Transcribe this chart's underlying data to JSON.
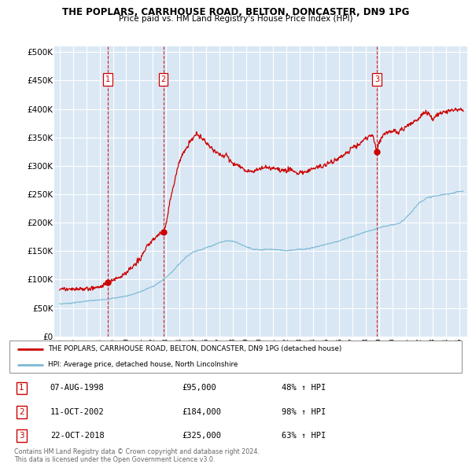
{
  "title": "THE POPLARS, CARRHOUSE ROAD, BELTON, DONCASTER, DN9 1PG",
  "subtitle": "Price paid vs. HM Land Registry's House Price Index (HPI)",
  "yticks": [
    0,
    50000,
    100000,
    150000,
    200000,
    250000,
    300000,
    350000,
    400000,
    450000,
    500000
  ],
  "xlim_start": 1994.6,
  "xlim_end": 2025.6,
  "ylim": [
    0,
    510000
  ],
  "bg_color": "#dce9f5",
  "grid_color": "#ffffff",
  "sale_color": "#cc0000",
  "hpi_color": "#7ab8d4",
  "sales": [
    {
      "year": 1998.6,
      "price": 95000,
      "label": "1"
    },
    {
      "year": 2002.78,
      "price": 184000,
      "label": "2"
    },
    {
      "year": 2018.81,
      "price": 325000,
      "label": "3"
    }
  ],
  "sale_annotations": [
    {
      "label": "1",
      "date": "07-AUG-1998",
      "price": "£95,000",
      "hpi": "48% ↑ HPI"
    },
    {
      "label": "2",
      "date": "11-OCT-2002",
      "price": "£184,000",
      "hpi": "98% ↑ HPI"
    },
    {
      "label": "3",
      "date": "22-OCT-2018",
      "price": "£325,000",
      "hpi": "63% ↑ HPI"
    }
  ],
  "legend_sale_label": "THE POPLARS, CARRHOUSE ROAD, BELTON, DONCASTER, DN9 1PG (detached house)",
  "legend_hpi_label": "HPI: Average price, detached house, North Lincolnshire",
  "footer": "Contains HM Land Registry data © Crown copyright and database right 2024.\nThis data is licensed under the Open Government Licence v3.0.",
  "hpi_anchors_x": [
    1995,
    1995.5,
    1996,
    1996.5,
    1997,
    1997.5,
    1998,
    1998.5,
    1999,
    1999.5,
    2000,
    2000.5,
    2001,
    2001.5,
    2002,
    2002.5,
    2003,
    2003.5,
    2004,
    2004.5,
    2005,
    2005.5,
    2006,
    2006.5,
    2007,
    2007.5,
    2008,
    2008.5,
    2009,
    2009.5,
    2010,
    2010.5,
    2011,
    2011.5,
    2012,
    2012.5,
    2013,
    2013.5,
    2014,
    2014.5,
    2015,
    2015.5,
    2016,
    2016.5,
    2017,
    2017.5,
    2018,
    2018.5,
    2019,
    2019.5,
    2020,
    2020.5,
    2021,
    2021.5,
    2022,
    2022.5,
    2023,
    2023.5,
    2024,
    2024.5,
    2025
  ],
  "hpi_anchors_y": [
    57000,
    58000,
    59000,
    60500,
    62000,
    63000,
    64000,
    65500,
    67000,
    69000,
    71000,
    74000,
    78000,
    83000,
    88000,
    95000,
    104000,
    115000,
    128000,
    140000,
    148000,
    152000,
    156000,
    160000,
    165000,
    168000,
    168000,
    163000,
    158000,
    153000,
    152000,
    153000,
    153000,
    152000,
    151000,
    152000,
    153000,
    154000,
    156000,
    159000,
    162000,
    165000,
    168000,
    172000,
    176000,
    180000,
    184000,
    187000,
    191000,
    194000,
    196000,
    199000,
    208000,
    222000,
    235000,
    243000,
    246000,
    248000,
    250000,
    252000,
    255000
  ],
  "sale_anchors_x": [
    1995,
    1995.5,
    1996,
    1996.5,
    1997,
    1997.5,
    1998,
    1998.3,
    1998.6,
    1998.9,
    1999,
    1999.5,
    2000,
    2000.5,
    2001,
    2001.5,
    2002,
    2002.5,
    2002.78,
    2003,
    2003.3,
    2003.7,
    2004,
    2004.5,
    2005,
    2005.3,
    2005.5,
    2005.8,
    2006,
    2006.5,
    2007,
    2007.3,
    2007.5,
    2007.8,
    2008,
    2008.5,
    2009,
    2009.5,
    2010,
    2010.5,
    2011,
    2011.5,
    2012,
    2012.3,
    2012.5,
    2012.8,
    2013,
    2013.5,
    2014,
    2014.5,
    2015,
    2015.5,
    2016,
    2016.5,
    2017,
    2017.5,
    2018,
    2018.5,
    2018.81,
    2019,
    2019.3,
    2019.5,
    2020,
    2020.5,
    2021,
    2021.5,
    2022,
    2022.3,
    2022.5,
    2022.8,
    2023,
    2023.3,
    2023.5,
    2024,
    2024.5,
    2025
  ],
  "sale_anchors_y": [
    84000,
    83000,
    82000,
    83000,
    84000,
    85000,
    87000,
    90000,
    95000,
    98000,
    100000,
    105000,
    112000,
    122000,
    135000,
    155000,
    170000,
    180000,
    184000,
    200000,
    240000,
    280000,
    310000,
    330000,
    350000,
    355000,
    352000,
    347000,
    340000,
    330000,
    320000,
    315000,
    320000,
    310000,
    305000,
    300000,
    292000,
    290000,
    295000,
    298000,
    296000,
    293000,
    290000,
    295000,
    292000,
    288000,
    288000,
    290000,
    295000,
    298000,
    302000,
    308000,
    315000,
    322000,
    332000,
    338000,
    348000,
    355000,
    325000,
    342000,
    355000,
    358000,
    362000,
    360000,
    368000,
    375000,
    385000,
    392000,
    395000,
    388000,
    382000,
    388000,
    392000,
    395000,
    398000,
    398000
  ]
}
